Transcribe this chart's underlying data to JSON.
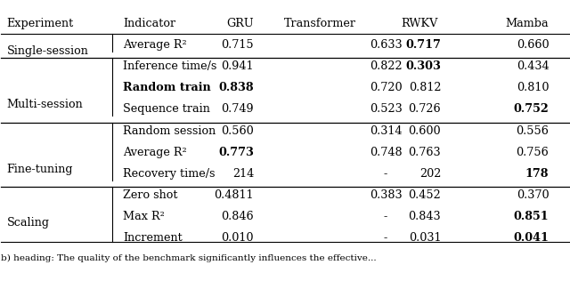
{
  "columns": [
    "Experiment",
    "Indicator",
    "GRU",
    "Transformer",
    "RWKV",
    "Mamba"
  ],
  "rows": [
    {
      "experiment": "Single-session",
      "indicator": "Average R²",
      "gru": "0.715",
      "transformer": "0.633",
      "rwkv": "0.717",
      "mamba": "0.660",
      "bold": {
        "gru": false,
        "transformer": false,
        "rwkv": true,
        "mamba": false,
        "indicator": false
      }
    },
    {
      "experiment": "",
      "indicator": "Inference time/s",
      "gru": "0.941",
      "transformer": "0.822",
      "rwkv": "0.303",
      "mamba": "0.434",
      "bold": {
        "gru": false,
        "transformer": false,
        "rwkv": true,
        "mamba": false,
        "indicator": false
      }
    },
    {
      "experiment": "Multi-session",
      "indicator": "Random train",
      "gru": "0.838",
      "transformer": "0.720",
      "rwkv": "0.812",
      "mamba": "0.810",
      "bold": {
        "gru": true,
        "transformer": false,
        "rwkv": false,
        "mamba": false,
        "indicator": true
      }
    },
    {
      "experiment": "",
      "indicator": "Sequence train",
      "gru": "0.749",
      "transformer": "0.523",
      "rwkv": "0.726",
      "mamba": "0.752",
      "bold": {
        "gru": false,
        "transformer": false,
        "rwkv": false,
        "mamba": true,
        "indicator": false
      }
    },
    {
      "experiment": "",
      "indicator": "Random session",
      "gru": "0.560",
      "transformer": "0.314",
      "rwkv": "0.600",
      "mamba": "0.556",
      "bold": {
        "gru": false,
        "transformer": false,
        "rwkv": false,
        "mamba": false,
        "indicator": false
      }
    },
    {
      "experiment": "Fine-tuning",
      "indicator": "Average R²",
      "gru": "0.773",
      "transformer": "0.748",
      "rwkv": "0.763",
      "mamba": "0.756",
      "bold": {
        "gru": true,
        "transformer": false,
        "rwkv": false,
        "mamba": false,
        "indicator": false
      }
    },
    {
      "experiment": "",
      "indicator": "Recovery time/s",
      "gru": "214",
      "transformer": "-",
      "rwkv": "202",
      "mamba": "178",
      "bold": {
        "gru": false,
        "transformer": false,
        "rwkv": false,
        "mamba": true,
        "indicator": false
      }
    },
    {
      "experiment": "",
      "indicator": "Zero shot",
      "gru": "0.4811",
      "transformer": "0.383",
      "rwkv": "0.452",
      "mamba": "0.370",
      "bold": {
        "gru": false,
        "transformer": false,
        "rwkv": false,
        "mamba": false,
        "indicator": false
      }
    },
    {
      "experiment": "Scaling",
      "indicator": "Max R²",
      "gru": "0.846",
      "transformer": "-",
      "rwkv": "0.843",
      "mamba": "0.851",
      "bold": {
        "gru": false,
        "transformer": false,
        "rwkv": false,
        "mamba": true,
        "indicator": false
      }
    },
    {
      "experiment": "",
      "indicator": "Increment",
      "gru": "0.010",
      "transformer": "-",
      "rwkv": "0.031",
      "mamba": "0.041",
      "bold": {
        "gru": false,
        "transformer": false,
        "rwkv": false,
        "mamba": true,
        "indicator": false
      }
    }
  ],
  "section_spans": [
    {
      "name": "Single-session",
      "start": 0,
      "end": 1
    },
    {
      "name": "Multi-session",
      "start": 2,
      "end": 4
    },
    {
      "name": "Fine-tuning",
      "start": 5,
      "end": 7
    },
    {
      "name": "Scaling",
      "start": 8,
      "end": 9
    }
  ],
  "bg_color": "#ffffff",
  "font_size": 9.2,
  "caption": "b) heading: The quality of the benchmark significantly influences the effective..."
}
